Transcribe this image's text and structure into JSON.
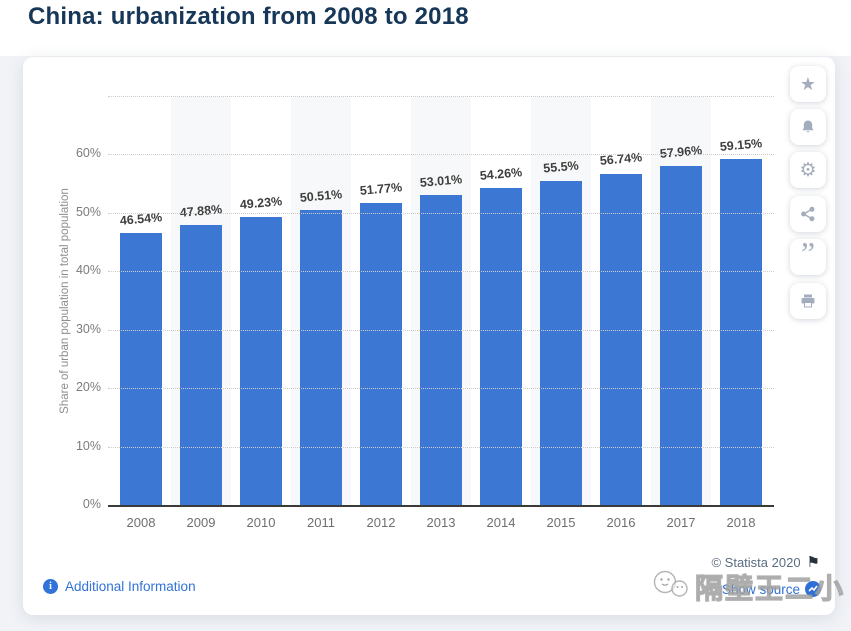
{
  "page": {
    "title": "China: urbanization from 2008 to 2018"
  },
  "chart_data": {
    "type": "bar",
    "title": "China: urbanization from 2008 to 2018",
    "categories": [
      "2008",
      "2009",
      "2010",
      "2011",
      "2012",
      "2013",
      "2014",
      "2015",
      "2016",
      "2017",
      "2018"
    ],
    "values": [
      46.54,
      47.88,
      49.23,
      50.51,
      51.77,
      53.01,
      54.26,
      55.5,
      56.74,
      57.96,
      59.15
    ],
    "value_labels": [
      "46.54%",
      "47.88%",
      "49.23%",
      "50.51%",
      "51.77%",
      "53.01%",
      "54.26%",
      "55.5%",
      "56.74%",
      "57.96%",
      "59.15%"
    ],
    "xlabel": "",
    "ylabel": "Share of urban population in total population",
    "ylim": [
      0,
      70
    ],
    "ytick_labels": [
      "0%",
      "10%",
      "20%",
      "30%",
      "40%",
      "50%",
      "60%"
    ],
    "gridlines": "dotted horizontal every 10%, topmost 70% unlabeled",
    "legend": "none",
    "bar_color": "#3d77d4",
    "stripe_color": "#f7f8f9"
  },
  "toolbar": {
    "buttons": [
      {
        "name": "favorite-star-icon",
        "glyph": "★"
      },
      {
        "name": "notification-bell-icon",
        "shape": "bell"
      },
      {
        "name": "settings-gear-icon",
        "glyph": "⚙"
      },
      {
        "name": "share-icon",
        "shape": "share"
      },
      {
        "name": "cite-quote-icon",
        "glyph": "”"
      },
      {
        "name": "print-icon",
        "shape": "print"
      }
    ]
  },
  "footer": {
    "additional_info_label": "Additional Information",
    "info_icon_glyph": "i",
    "copyright": "© Statista 2020",
    "flag_icon_glyph": "⚑",
    "source_link_label": "Show source"
  },
  "watermark": {
    "icon": "wechat-sketch-icon",
    "text": "隔壁王二小"
  },
  "colors": {
    "accent_blue": "#3d77d4",
    "link_blue": "#2f6fd6",
    "title_navy": "#173758",
    "page_background": "#f1f3f7",
    "card_background": "#ffffff",
    "axis_text": "#7b7b7b",
    "value_label_text": "#3e3e3e"
  }
}
